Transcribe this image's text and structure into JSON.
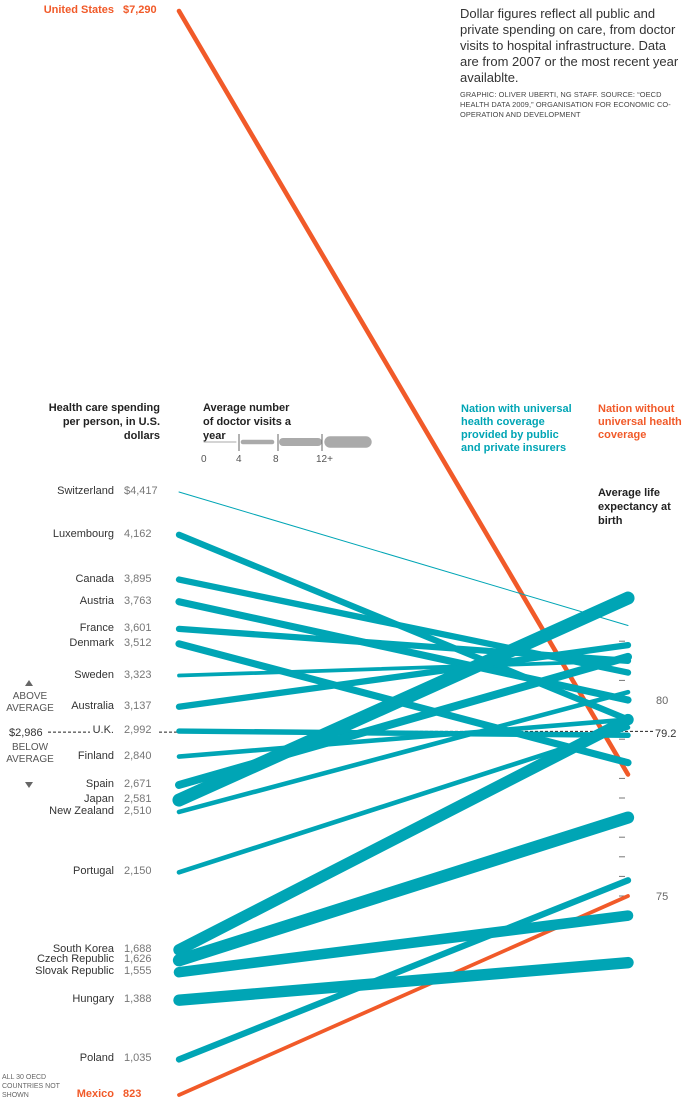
{
  "intro_note": "Dollar figures reflect all public and private spending on care, from doctor visits to hospital infrastructure. Data are from 2007 or the most recent year availablte.",
  "credit": "GRAPHIC: OLIVER UBERTI, NG STAFF. SOURCE: “OECD HEALTH DATA 2009,” ORGANISATION FOR ECONOMIC CO-OPERATION AND DEVELOPMENT",
  "spending_header": "Health care spending per person, in U.S. dollars",
  "visits_header": "Average number of doctor visits a year",
  "visit_scale_labels": [
    "0",
    "4",
    "8",
    "12+"
  ],
  "legend": {
    "universal": "Nation with universal health coverage provided by public and private insurers",
    "non_universal": "Nation without universal health coverage"
  },
  "life_header": "Average life expectancy at birth",
  "above_label": "ABOVE AVERAGE",
  "below_label": "BELOW AVERAGE",
  "avg_spending_label": "$2,986",
  "avg_life_label": "79.2",
  "footnote": "ALL 30 OECD COUNTRIES NOT SHOWN",
  "colors": {
    "universal": "#00a5b5",
    "non_universal": "#f15a29",
    "text": "#333333",
    "value": "#777777"
  },
  "chart_data": {
    "type": "slope",
    "left_axis": "Health care spending per person, in U.S. dollars",
    "right_axis": "Average life expectancy at birth",
    "right_ticks": [
      75,
      80
    ],
    "avg_spending": 2986,
    "avg_life": 79.2,
    "countries": [
      {
        "name": "United States",
        "spending": 7290,
        "spending_label": "$7,290",
        "life": 78.1,
        "visits": 4,
        "universal": false
      },
      {
        "name": "Switzerland",
        "spending": 4417,
        "spending_label": "$4,417",
        "life": 81.9,
        "visits": 1,
        "universal": true
      },
      {
        "name": "Luxembourg",
        "spending": 4162,
        "spending_label": "4,162",
        "life": 79.5,
        "visits": 6,
        "universal": true
      },
      {
        "name": "Canada",
        "spending": 3895,
        "spending_label": "3,895",
        "life": 80.7,
        "visits": 6,
        "universal": true
      },
      {
        "name": "Austria",
        "spending": 3763,
        "spending_label": "3,763",
        "life": 80.0,
        "visits": 7,
        "universal": true
      },
      {
        "name": "France",
        "spending": 3601,
        "spending_label": "3,601",
        "life": 81.0,
        "visits": 6,
        "universal": true
      },
      {
        "name": "Denmark",
        "spending": 3512,
        "spending_label": "3,512",
        "life": 78.4,
        "visits": 7,
        "universal": true
      },
      {
        "name": "Sweden",
        "spending": 3323,
        "spending_label": "3,323",
        "life": 81.0,
        "visits": 3,
        "universal": true
      },
      {
        "name": "Australia",
        "spending": 3137,
        "spending_label": "3,137",
        "life": 81.4,
        "visits": 6,
        "universal": true
      },
      {
        "name": "U.K.",
        "spending": 2992,
        "spending_label": "2,992",
        "life": 79.1,
        "visits": 5,
        "universal": true
      },
      {
        "name": "Finland",
        "spending": 2840,
        "spending_label": "2,840",
        "life": 79.5,
        "visits": 4,
        "universal": true
      },
      {
        "name": "Spain",
        "spending": 2671,
        "spending_label": "2,671",
        "life": 81.1,
        "visits": 8,
        "universal": true
      },
      {
        "name": "Japan",
        "spending": 2581,
        "spending_label": "2,581",
        "life": 82.6,
        "visits": 14,
        "universal": true
      },
      {
        "name": "New Zealand",
        "spending": 2510,
        "spending_label": "2,510",
        "life": 80.2,
        "visits": 4,
        "universal": true
      },
      {
        "name": "Portugal",
        "spending": 2150,
        "spending_label": "2,150",
        "life": 79.3,
        "visits": 4,
        "universal": true
      },
      {
        "name": "South Korea",
        "spending": 1688,
        "spending_label": "1,688",
        "life": 79.5,
        "visits": 12,
        "universal": true
      },
      {
        "name": "Czech Republic",
        "spending": 1626,
        "spending_label": "1,626",
        "life": 77.0,
        "visits": 13,
        "universal": true
      },
      {
        "name": "Slovak Republic",
        "spending": 1555,
        "spending_label": "1,555",
        "life": 74.5,
        "visits": 11,
        "universal": true
      },
      {
        "name": "Hungary",
        "spending": 1388,
        "spending_label": "1,388",
        "life": 73.3,
        "visits": 12,
        "universal": true
      },
      {
        "name": "Poland",
        "spending": 1035,
        "spending_label": "1,035",
        "life": 75.4,
        "visits": 6,
        "universal": true
      },
      {
        "name": "Mexico",
        "spending": 823,
        "spending_label": "823",
        "life": 75.0,
        "visits": 3,
        "universal": false
      }
    ]
  }
}
